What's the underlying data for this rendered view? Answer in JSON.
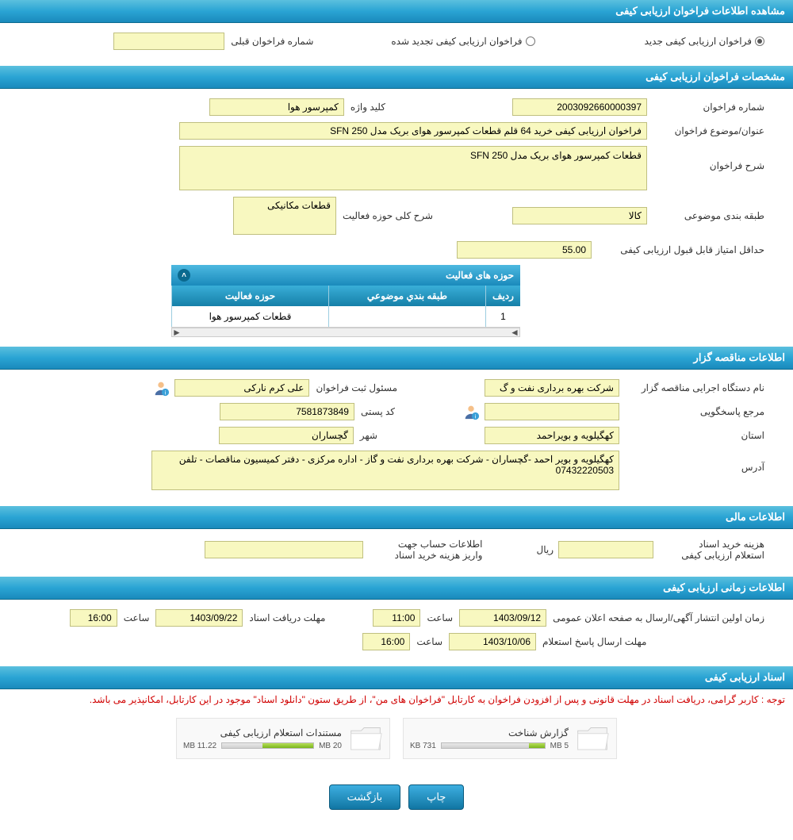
{
  "sections": {
    "s1": "مشاهده اطلاعات فراخوان ارزیابی کیفی",
    "s2": "مشخصات فراخوان ارزیابی کیفی",
    "s3": "اطلاعات مناقصه گزار",
    "s4": "اطلاعات مالی",
    "s5": "اطلاعات زمانی ارزیابی کیفی",
    "s6": "اسناد ارزیابی کیفی"
  },
  "top": {
    "opt_new": "فراخوان ارزیابی کیفی جدید",
    "opt_renew": "فراخوان ارزیابی کیفی تجدید شده",
    "prev_no_label": "شماره فراخوان قبلی",
    "prev_no": ""
  },
  "spec": {
    "no_label": "شماره فراخوان",
    "no": "2003092660000397",
    "keyword_label": "کلید واژه",
    "keyword": "کمپرسور هوا",
    "subject_label": "عنوان/موضوع فراخوان",
    "subject": "فراخوان ارزیابی کیفی خرید 64 قلم قطعات کمپرسور هوای بریک مدل SFN 250",
    "desc_label": "شرح فراخوان",
    "desc": "قطعات کمپرسور هوای بریک مدل SFN 250",
    "cat_label": "طبقه بندی موضوعی",
    "cat": "کالا",
    "scope_label": "شرح کلی حوزه فعالیت",
    "scope": "قطعات مکانیکی",
    "minscore_label": "حداقل امتیاز قابل قبول ارزیابی کیفی",
    "minscore": "55.00"
  },
  "activity": {
    "title": "حوزه های فعالیت",
    "col_row": "ردیف",
    "col_cat": "طبقه بندي موضوعي",
    "col_scope": "حوزه فعالیت",
    "rows": [
      {
        "n": "1",
        "cat": "",
        "scope": "قطعات کمپرسور هوا"
      }
    ]
  },
  "tender": {
    "org_label": "نام دستگاه اجرایی مناقصه گزار",
    "org": "شرکت بهره برداری نفت و گ",
    "reg_label": "مسئول ثبت فراخوان",
    "reg": "علی کرم نارکی",
    "resp_label": "مرجع پاسخگویی",
    "resp": "",
    "post_label": "کد پستی",
    "post": "7581873849",
    "province_label": "استان",
    "province": "کهگیلویه و بویراحمد",
    "city_label": "شهر",
    "city": "گچساران",
    "addr_label": "آدرس",
    "addr": "کهگیلویه و بویر احمد -گچساران - شرکت بهره برداری نفت و گاز - اداره مرکزی - دفتر کمیسیون مناقصات - تلفن 07432220503"
  },
  "fin": {
    "cost_label_a": "هزینه خرید اسناد",
    "cost_label_b": "استعلام ارزیابی کیفی",
    "cost": "",
    "rial": "ریال",
    "acc_label_a": "اطلاعات حساب جهت",
    "acc_label_b": "واریز هزینه خرید اسناد",
    "acc": ""
  },
  "time": {
    "pub_label": "زمان اولین انتشار آگهی/ارسال به صفحه اعلان عمومی",
    "pub_date": "1403/09/12",
    "hour": "ساعت",
    "pub_time": "11:00",
    "deadline_label": "مهلت دریافت اسناد",
    "deadline_date": "1403/09/22",
    "deadline_time": "16:00",
    "reply_label": "مهلت ارسال پاسخ استعلام",
    "reply_date": "1403/10/06",
    "reply_time": "16:00"
  },
  "note": "توجه : کاربر گرامی، دریافت اسناد در مهلت قانونی و پس از افزودن فراخوان به کارتابل \"فراخوان های من\"، از طریق ستون \"دانلود اسناد\" موجود در این کارتابل، امکانپذیر می باشد.",
  "files": {
    "f1": {
      "title": "گزارش شناخت",
      "size": "731 KB",
      "total": "5 MB",
      "pct": 15
    },
    "f2": {
      "title": "مستندات استعلام ارزیابی کیفی",
      "size": "11.22 MB",
      "total": "20 MB",
      "pct": 56
    }
  },
  "buttons": {
    "print": "چاپ",
    "back": "بازگشت"
  }
}
